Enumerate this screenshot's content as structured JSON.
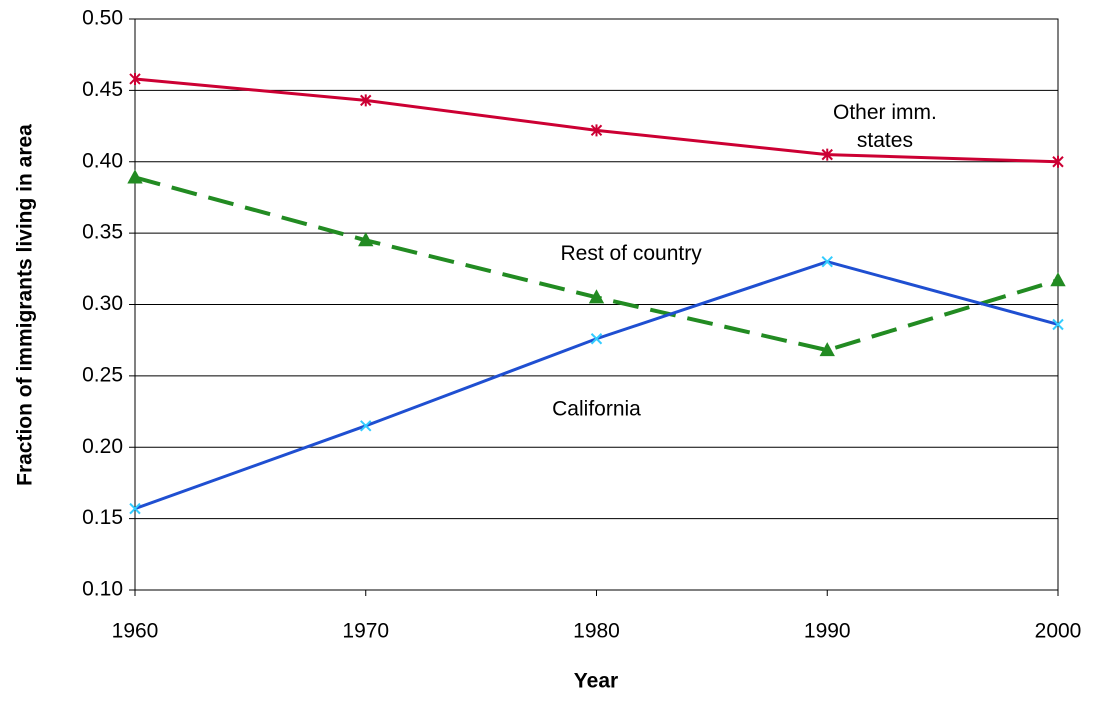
{
  "chart_data": {
    "type": "line",
    "x_label": "Year",
    "y_label": "Fraction of immigrants living in area",
    "x": [
      1960,
      1970,
      1980,
      1990,
      2000
    ],
    "xlim": [
      1960,
      2000
    ],
    "xticks": [
      1960,
      1970,
      1980,
      1990,
      2000
    ],
    "ylim": [
      0.1,
      0.5
    ],
    "yticks": [
      {
        "value": 0.1,
        "label": "0.10"
      },
      {
        "value": 0.15,
        "label": "0.15"
      },
      {
        "value": 0.2,
        "label": "0.20"
      },
      {
        "value": 0.25,
        "label": "0.25"
      },
      {
        "value": 0.3,
        "label": "0.30"
      },
      {
        "value": 0.35,
        "label": "0.35"
      },
      {
        "value": 0.4,
        "label": "0.40"
      },
      {
        "value": 0.45,
        "label": "0.45"
      },
      {
        "value": 0.5,
        "label": "0.50"
      }
    ],
    "grid": true,
    "series": [
      {
        "name": "Other imm. states",
        "color": "#cc0033",
        "marker": "star",
        "line_style": "solid",
        "values": [
          0.458,
          0.443,
          0.422,
          0.405,
          0.4
        ]
      },
      {
        "name": "Rest of country",
        "color": "#228b22",
        "marker": "triangle",
        "line_style": "dashed",
        "values": [
          0.389,
          0.345,
          0.305,
          0.268,
          0.317
        ]
      },
      {
        "name": "California",
        "color": "#1f4fd1",
        "marker": "x",
        "line_style": "solid",
        "values": [
          0.157,
          0.215,
          0.276,
          0.33,
          0.286
        ]
      }
    ],
    "annotations": [
      {
        "lines": [
          "Other imm.",
          "states"
        ],
        "x": 1992.5,
        "y": 0.424
      },
      {
        "lines": [
          "Rest of country"
        ],
        "x": 1981.5,
        "y": 0.335
      },
      {
        "lines": [
          "California"
        ],
        "x": 1980,
        "y": 0.226
      }
    ]
  }
}
